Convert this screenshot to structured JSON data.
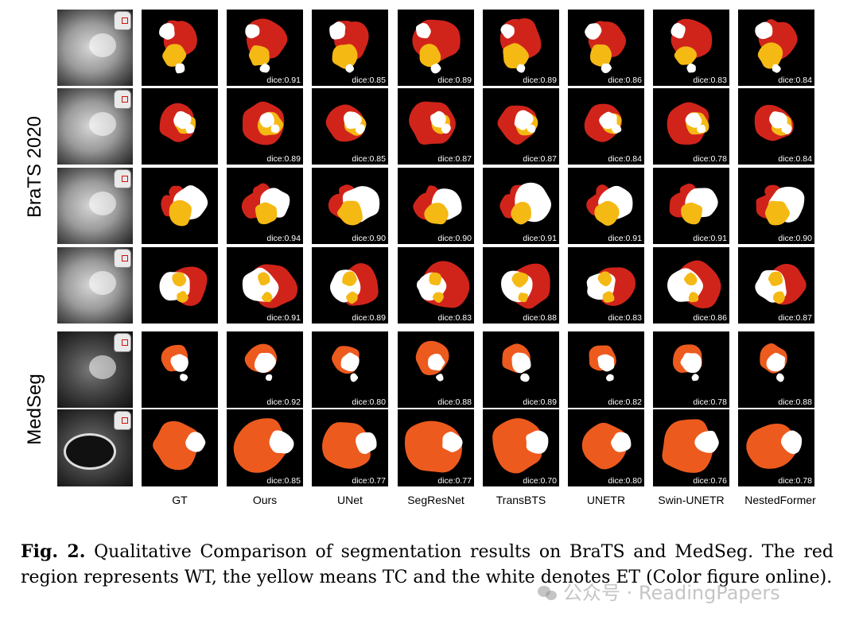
{
  "figure": {
    "groups": [
      {
        "label": "BraTS 2020",
        "rows": 4
      },
      {
        "label": "MedSeg",
        "rows": 2
      }
    ],
    "methods": [
      "GT",
      "Ours",
      "UNet",
      "SegResNet",
      "TransBTS",
      "UNETR",
      "Swin-UNETR",
      "NestedFormer"
    ],
    "rows": [
      {
        "dataset": "BraTS 2020",
        "scores": [
          "",
          "dice:0.91",
          "dice:0.85",
          "dice:0.89",
          "dice:0.89",
          "dice:0.86",
          "dice:0.83",
          "dice:0.84"
        ]
      },
      {
        "dataset": "BraTS 2020",
        "scores": [
          "",
          "dice:0.89",
          "dice:0.85",
          "dice:0.87",
          "dice:0.87",
          "dice:0.84",
          "dice:0.78",
          "dice:0.84"
        ]
      },
      {
        "dataset": "BraTS 2020",
        "scores": [
          "",
          "dice:0.94",
          "dice:0.90",
          "dice:0.90",
          "dice:0.91",
          "dice:0.91",
          "dice:0.91",
          "dice:0.90"
        ]
      },
      {
        "dataset": "BraTS 2020",
        "scores": [
          "",
          "dice:0.91",
          "dice:0.89",
          "dice:0.83",
          "dice:0.88",
          "dice:0.83",
          "dice:0.86",
          "dice:0.87"
        ]
      },
      {
        "dataset": "MedSeg",
        "scores": [
          "",
          "dice:0.92",
          "dice:0.80",
          "dice:0.88",
          "dice:0.89",
          "dice:0.82",
          "dice:0.78",
          "dice:0.88"
        ]
      },
      {
        "dataset": "MedSeg",
        "scores": [
          "",
          "dice:0.85",
          "dice:0.77",
          "dice:0.77",
          "dice:0.70",
          "dice:0.80",
          "dice:0.76",
          "dice:0.78"
        ]
      }
    ],
    "colors": {
      "wt": "#d0241b",
      "tc": "#f5b914",
      "et": "#ffffff",
      "medseg_region": "#ec5a1e",
      "background": "#000000"
    }
  },
  "caption": {
    "label": "Fig. 2.",
    "text": "Qualitative Comparison of segmentation results on BraTS and MedSeg. The red region represents WT, the yellow means TC and the white denotes ET (Color figure online)."
  },
  "watermark": {
    "text": "公众号 · ReadingPapers",
    "icon": "wechat-icon"
  }
}
